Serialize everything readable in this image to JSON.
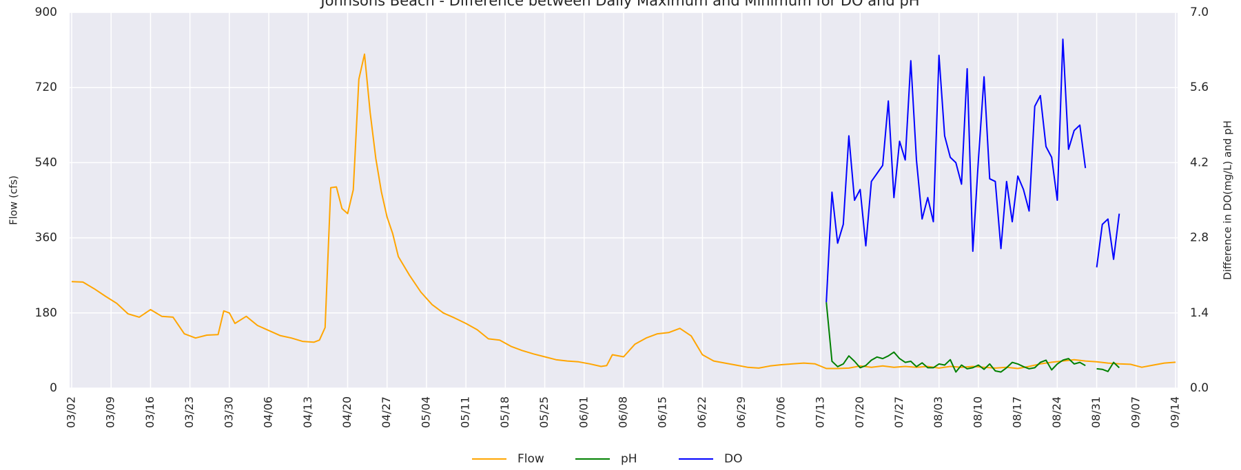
{
  "chart_data": {
    "type": "line",
    "title": "Johnsons Beach - Difference between Daily Maximum and Minimum for DO and pH",
    "ylabel": "Flow (cfs)",
    "y2label": "Difference in DO(mg/L) and pH",
    "xlim": [
      "03/02",
      "09/14"
    ],
    "xticks": [
      "03/02",
      "03/09",
      "03/16",
      "03/23",
      "03/30",
      "04/06",
      "04/13",
      "04/20",
      "04/27",
      "05/04",
      "05/11",
      "05/18",
      "05/25",
      "06/01",
      "06/08",
      "06/15",
      "06/22",
      "06/29",
      "07/06",
      "07/13",
      "07/20",
      "07/27",
      "08/03",
      "08/10",
      "08/17",
      "08/24",
      "08/31",
      "09/07",
      "09/14"
    ],
    "ylim": [
      0,
      900
    ],
    "yticks": [
      0,
      180,
      360,
      540,
      720,
      900
    ],
    "y2lim": [
      0,
      7
    ],
    "y2ticks": [
      {
        "value": 0,
        "label": "0.0"
      },
      {
        "value": 1.4,
        "label": "1.4"
      },
      {
        "value": 2.8,
        "label": "2.8"
      },
      {
        "value": 4.2,
        "label": "4.2"
      },
      {
        "value": 5.6,
        "label": "5.6"
      },
      {
        "value": 7,
        "label": "7.0"
      }
    ],
    "grid": true,
    "legend": "bottom",
    "series": [
      {
        "name": "Flow",
        "color": "#ffa500",
        "x": [
          "03/02",
          "03/04",
          "03/06",
          "03/08",
          "03/10",
          "03/12",
          "03/14",
          "03/16",
          "03/18",
          "03/20",
          "03/22",
          "03/24",
          "03/26",
          "03/28",
          "03/29",
          "03/30",
          "03/31",
          "04/02",
          "04/04",
          "04/06",
          "04/08",
          "04/10",
          "04/12",
          "04/14",
          "04/15",
          "04/16",
          "04/17",
          "04/18",
          "04/19",
          "04/20",
          "04/21",
          "04/22",
          "04/23",
          "04/24",
          "04/25",
          "04/26",
          "04/27",
          "04/28",
          "04/29",
          "05/01",
          "05/03",
          "05/05",
          "05/07",
          "05/09",
          "05/11",
          "05/13",
          "05/15",
          "05/17",
          "05/19",
          "05/21",
          "05/23",
          "05/25",
          "05/27",
          "05/29",
          "05/31",
          "06/02",
          "06/04",
          "06/05",
          "06/06",
          "06/08",
          "06/10",
          "06/12",
          "06/14",
          "06/16",
          "06/18",
          "06/20",
          "06/22",
          "06/24",
          "06/26",
          "06/28",
          "06/30",
          "07/02",
          "07/04",
          "07/06",
          "07/08",
          "07/10",
          "07/12",
          "07/14",
          "07/16",
          "07/18",
          "07/20",
          "07/22",
          "07/24",
          "07/26",
          "07/28",
          "07/30",
          "08/01",
          "08/03",
          "08/05",
          "08/07",
          "08/09",
          "08/11",
          "08/13",
          "08/15",
          "08/17",
          "08/19",
          "08/21",
          "08/23",
          "08/25",
          "08/27",
          "08/29",
          "08/31",
          "09/02",
          "09/04",
          "09/06",
          "09/08",
          "09/10",
          "09/12",
          "09/14"
        ],
        "values": [
          255,
          254,
          238,
          220,
          203,
          178,
          170,
          188,
          172,
          170,
          130,
          120,
          127,
          128,
          185,
          180,
          155,
          172,
          150,
          138,
          126,
          120,
          112,
          110,
          115,
          145,
          480,
          482,
          430,
          418,
          475,
          740,
          800,
          660,
          550,
          470,
          410,
          370,
          315,
          270,
          230,
          200,
          180,
          168,
          155,
          140,
          118,
          115,
          100,
          90,
          82,
          75,
          68,
          65,
          63,
          58,
          52,
          54,
          80,
          75,
          105,
          120,
          130,
          133,
          143,
          125,
          80,
          65,
          60,
          55,
          50,
          48,
          53,
          56,
          58,
          60,
          58,
          47,
          47,
          48,
          53,
          50,
          53,
          50,
          52,
          50,
          52,
          48,
          52,
          50,
          52,
          50,
          48,
          50,
          47,
          52,
          58,
          62,
          65,
          68,
          65,
          63,
          60,
          58,
          57,
          50,
          55,
          60,
          62
        ]
      },
      {
        "name": "pH",
        "color": "#008000",
        "axis": "y2",
        "x": [
          "07/14",
          "07/15",
          "07/16",
          "07/17",
          "07/18",
          "07/19",
          "07/20",
          "07/21",
          "07/22",
          "07/23",
          "07/24",
          "07/25",
          "07/26",
          "07/27",
          "07/28",
          "07/29",
          "07/30",
          "07/31",
          "08/01",
          "08/02",
          "08/03",
          "08/04",
          "08/05",
          "08/06",
          "08/07",
          "08/08",
          "08/09",
          "08/10",
          "08/11",
          "08/12",
          "08/13",
          "08/14",
          "08/15",
          "08/16",
          "08/17",
          "08/18",
          "08/19",
          "08/20",
          "08/21",
          "08/22",
          "08/23",
          "08/24",
          "08/25",
          "08/26",
          "08/27",
          "08/28",
          "08/29",
          "08/30",
          "08/31",
          "09/01",
          "09/02",
          "09/03",
          "09/04"
        ],
        "values": [
          1.6,
          0.5,
          0.4,
          0.45,
          0.6,
          0.5,
          0.38,
          0.42,
          0.52,
          0.58,
          0.55,
          0.6,
          0.67,
          0.55,
          0.48,
          0.5,
          0.4,
          0.47,
          0.38,
          0.38,
          0.45,
          0.43,
          0.53,
          0.3,
          0.43,
          0.36,
          0.38,
          0.43,
          0.35,
          0.45,
          0.32,
          0.3,
          0.38,
          0.48,
          0.45,
          0.4,
          0.36,
          0.38,
          0.48,
          0.52,
          0.34,
          0.45,
          0.52,
          0.55,
          0.45,
          0.48,
          0.42,
          null,
          0.36,
          0.35,
          0.31,
          0.48,
          0.38
        ]
      },
      {
        "name": "DO",
        "color": "#0000ff",
        "axis": "y2",
        "x": [
          "07/14",
          "07/15",
          "07/16",
          "07/17",
          "07/18",
          "07/19",
          "07/20",
          "07/21",
          "07/22",
          "07/23",
          "07/24",
          "07/25",
          "07/26",
          "07/27",
          "07/28",
          "07/29",
          "07/30",
          "07/31",
          "08/01",
          "08/02",
          "08/03",
          "08/04",
          "08/05",
          "08/06",
          "08/07",
          "08/08",
          "08/09",
          "08/10",
          "08/11",
          "08/12",
          "08/13",
          "08/14",
          "08/15",
          "08/16",
          "08/17",
          "08/18",
          "08/19",
          "08/20",
          "08/21",
          "08/22",
          "08/23",
          "08/24",
          "08/25",
          "08/26",
          "08/27",
          "08/28",
          "08/29",
          "08/30",
          "08/31",
          "09/01",
          "09/02",
          "09/03",
          "09/04"
        ],
        "values": [
          1.6,
          3.65,
          2.7,
          3.05,
          4.7,
          3.5,
          3.7,
          2.65,
          3.85,
          4.0,
          4.15,
          5.35,
          3.55,
          4.6,
          4.25,
          6.1,
          4.25,
          3.15,
          3.55,
          3.1,
          6.2,
          4.7,
          4.3,
          4.2,
          3.8,
          5.95,
          2.55,
          4.25,
          5.8,
          3.9,
          3.85,
          2.6,
          3.85,
          3.1,
          3.95,
          3.7,
          3.3,
          5.25,
          5.45,
          4.5,
          4.3,
          3.5,
          6.5,
          4.45,
          4.8,
          4.9,
          4.1,
          null,
          2.25,
          3.05,
          3.15,
          2.4,
          3.25
        ]
      }
    ]
  }
}
